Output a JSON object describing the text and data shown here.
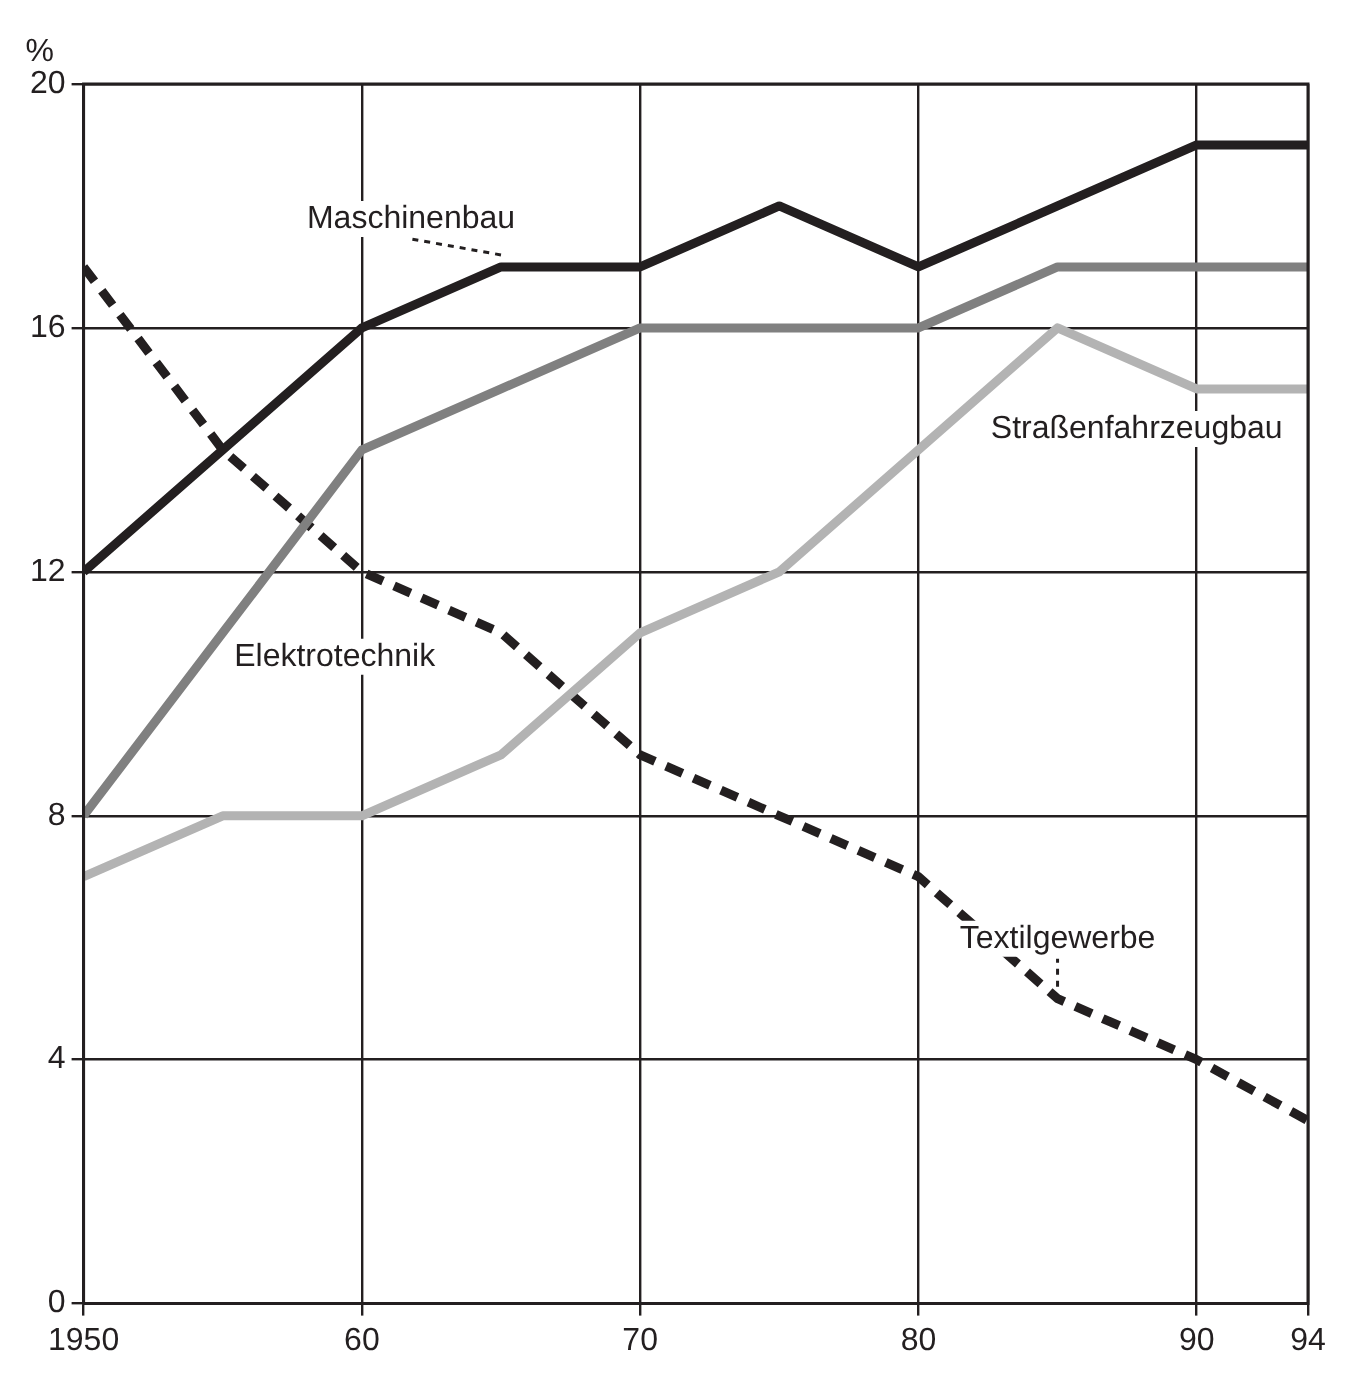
{
  "chart_data": {
    "type": "line",
    "ylabel": "%",
    "x": [
      1950,
      1955,
      1960,
      1965,
      1970,
      1975,
      1980,
      1985,
      1990,
      1994
    ],
    "xlim": [
      1950,
      1994
    ],
    "xticks": [
      {
        "value": 1950,
        "label": "1950"
      },
      {
        "value": 1960,
        "label": "60"
      },
      {
        "value": 1970,
        "label": "70"
      },
      {
        "value": 1980,
        "label": "80"
      },
      {
        "value": 1990,
        "label": "90"
      },
      {
        "value": 1994,
        "label": "94"
      }
    ],
    "ylim": [
      0,
      20
    ],
    "yticks": [
      0,
      4,
      8,
      12,
      16,
      20
    ],
    "grid": true,
    "legend": false,
    "marker": "none",
    "series": [
      {
        "name": "Maschinenbau",
        "color": "#231f20",
        "line_style": "solid",
        "values": [
          12,
          14,
          16,
          17,
          17,
          18,
          17,
          18,
          19,
          19
        ]
      },
      {
        "name": "Elektrotechnik",
        "color": "#808080",
        "line_style": "solid",
        "values": [
          8,
          11,
          14,
          15,
          16,
          16,
          16,
          17,
          17,
          17
        ]
      },
      {
        "name": "Straßenfahrzeugbau",
        "color": "#b3b3b3",
        "line_style": "solid",
        "values": [
          7,
          8,
          8,
          9,
          11,
          12,
          14,
          16,
          15,
          15
        ]
      },
      {
        "name": "Textilgewerbe",
        "color": "#231f20",
        "line_style": "dashed",
        "values": [
          17,
          14,
          12,
          11,
          9,
          8,
          7,
          5,
          4,
          3
        ]
      }
    ]
  }
}
